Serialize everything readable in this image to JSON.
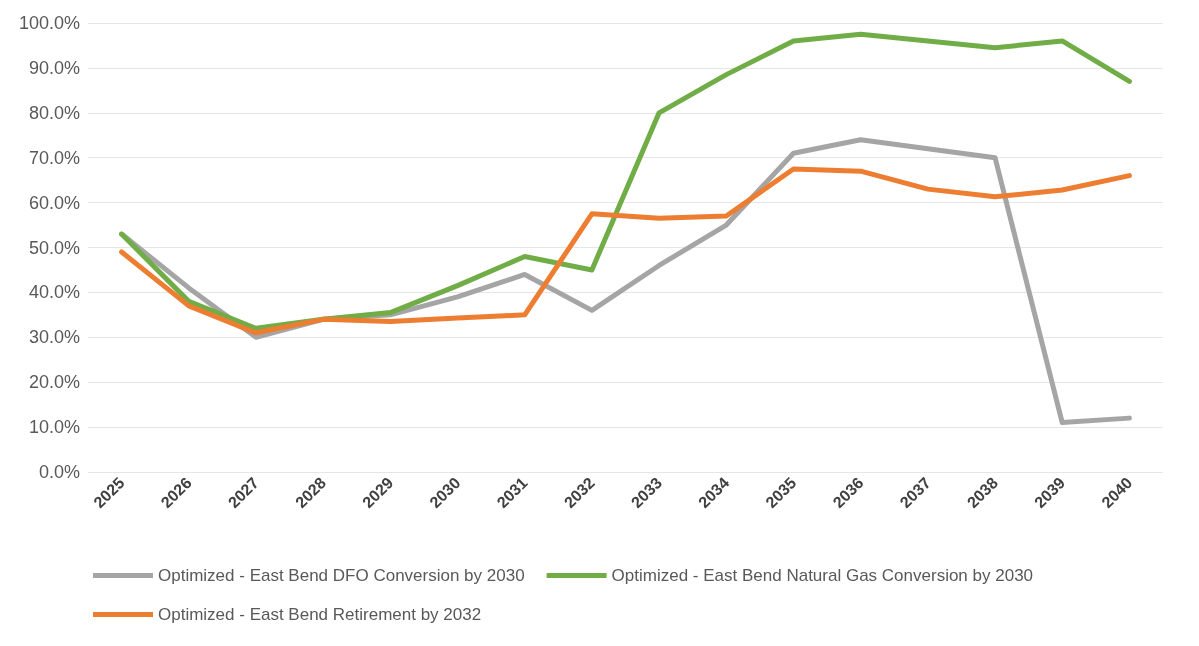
{
  "chart_data": {
    "type": "line",
    "categories": [
      "2025",
      "2026",
      "2027",
      "2028",
      "2029",
      "2030",
      "2031",
      "2032",
      "2033",
      "2034",
      "2035",
      "2036",
      "2037",
      "2038",
      "2039",
      "2040"
    ],
    "series": [
      {
        "name": "Optimized - East Bend DFO Conversion by 2030",
        "color": "#a5a5a5",
        "values": [
          53,
          41,
          30,
          34,
          35,
          39,
          44,
          36,
          46,
          55,
          71,
          74,
          72,
          70,
          11,
          12
        ]
      },
      {
        "name": "Optimized - East Bend Natural Gas Conversion by 2030",
        "color": "#70ad47",
        "values": [
          53,
          38,
          32,
          34,
          35.5,
          41.5,
          48,
          45,
          80,
          88.5,
          96,
          97.5,
          96,
          94.5,
          96,
          87
        ]
      },
      {
        "name": "Optimized - East Bend Retirement by 2032",
        "color": "#ed7d31",
        "values": [
          49,
          37,
          31,
          34,
          33.5,
          34.3,
          35,
          57.5,
          56.5,
          57,
          67.5,
          67,
          63,
          61.3,
          62.8,
          66
        ]
      }
    ],
    "ylim": [
      0,
      100
    ],
    "yticks": [
      {
        "value": 0,
        "label": "0.0%"
      },
      {
        "value": 10,
        "label": "10.0%"
      },
      {
        "value": 20,
        "label": "20.0%"
      },
      {
        "value": 30,
        "label": "30.0%"
      },
      {
        "value": 40,
        "label": "40.0%"
      },
      {
        "value": 50,
        "label": "50.0%"
      },
      {
        "value": 60,
        "label": "60.0%"
      },
      {
        "value": 70,
        "label": "70.0%"
      },
      {
        "value": 80,
        "label": "80.0%"
      },
      {
        "value": 90,
        "label": "90.0%"
      },
      {
        "value": 100,
        "label": "100.0%"
      }
    ],
    "grid": "y",
    "legend": "bottom",
    "marker": "none",
    "line_style": "solid"
  }
}
